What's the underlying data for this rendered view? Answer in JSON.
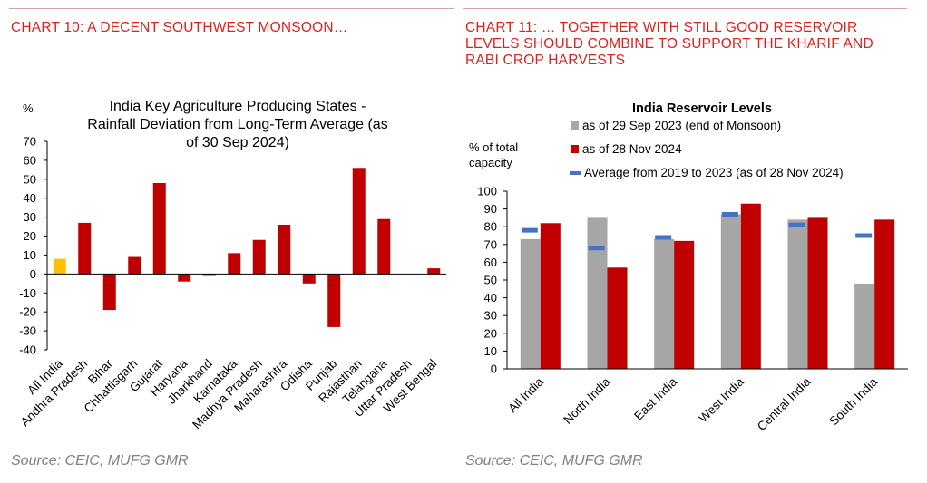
{
  "left": {
    "heading": "CHART 10: A DECENT SOUTHWEST MONSOON…",
    "source": "Source: CEIC, MUFG GMR",
    "colors": {
      "highlight": "#ffc000",
      "bar": "#c00000"
    },
    "chart_data": {
      "type": "bar",
      "title_lines": [
        "India Key Agriculture Producing States -",
        "Rainfall Deviation from Long-Term Average (as",
        "of 30 Sep 2024)"
      ],
      "ylabel": "%",
      "ylim": [
        -40,
        70
      ],
      "yticks": [
        -40,
        -30,
        -20,
        -10,
        0,
        10,
        20,
        30,
        40,
        50,
        60,
        70
      ],
      "categories": [
        "All India",
        "Andhra Pradesh",
        "Bihar",
        "Chhattisgarh",
        "Gujarat",
        "Haryana",
        "Jharkhand",
        "Karnataka",
        "Madhya Pradesh",
        "Maharashtra",
        "Odisha",
        "Punjab",
        "Rajasthan",
        "Telangana",
        "Uttar Pradesh",
        "West Bengal"
      ],
      "values": [
        8,
        27,
        -19,
        9,
        48,
        -4,
        -1,
        11,
        18,
        26,
        -5,
        -28,
        56,
        29,
        0,
        3
      ]
    }
  },
  "right": {
    "heading": "CHART 11: … TOGETHER WITH STILL GOOD RESERVOIR LEVELS SHOULD COMBINE TO SUPPORT THE KHARIF AND RABI CROP HARVESTS",
    "source": "Source: CEIC, MUFG GMR",
    "colors": {
      "series1": "#a6a6a6",
      "series2": "#c00000",
      "average": "#4472c4"
    },
    "chart_data": {
      "type": "bar",
      "title": "India Reservoir Levels",
      "ylabel_lines": [
        "% of total",
        "capacity"
      ],
      "ylim": [
        0,
        100
      ],
      "yticks": [
        0,
        10,
        20,
        30,
        40,
        50,
        60,
        70,
        80,
        90,
        100
      ],
      "categories": [
        "All India",
        "North India",
        "East India",
        "West India",
        "Central India",
        "South India"
      ],
      "series": [
        {
          "name": "as of 29 Sep 2023 (end of Monsoon)",
          "values": [
            73,
            85,
            73,
            87,
            84,
            48
          ]
        },
        {
          "name": "as of 28 Nov 2024",
          "values": [
            82,
            57,
            72,
            93,
            85,
            84
          ]
        },
        {
          "name": "Average from 2019 to 2023 (as of 28 Nov 2024)",
          "values": [
            78,
            68,
            74,
            87,
            81,
            75
          ]
        }
      ]
    }
  }
}
